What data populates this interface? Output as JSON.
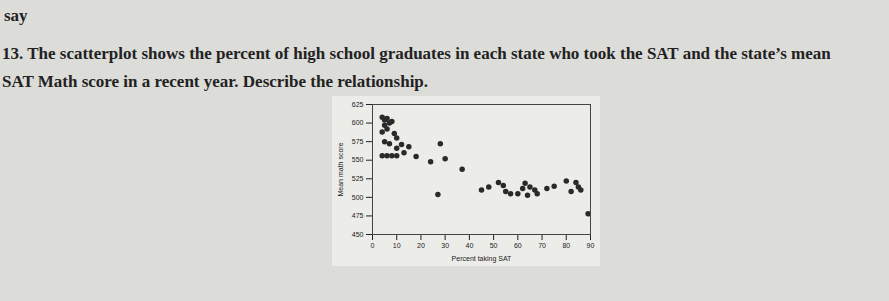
{
  "page": {
    "header": "say",
    "question_lines": [
      "13. The scatterplot shows the percent of high school graduates in each state who took the SAT and the state’s mean",
      "SAT Math score in a recent year. Describe the relationship."
    ]
  },
  "chart_data": {
    "type": "scatter",
    "x_label": "Percent taking SAT",
    "y_label": "Mean math score",
    "xlim": [
      0,
      90
    ],
    "xticks": [
      0,
      10,
      20,
      30,
      40,
      50,
      60,
      70,
      80,
      90
    ],
    "ylim": [
      450,
      625
    ],
    "yticks": [
      450,
      475,
      500,
      525,
      550,
      575,
      600,
      625
    ],
    "color": "#2a2a2a",
    "marker": "circle",
    "grid": false,
    "x": [
      4,
      5,
      6,
      7,
      5,
      8,
      6,
      4,
      9,
      10,
      5,
      7,
      12,
      10,
      15,
      28,
      4,
      6,
      8,
      10,
      13,
      18,
      24,
      30,
      37,
      27,
      45,
      52,
      54,
      48,
      55,
      57,
      60,
      62,
      63,
      65,
      67,
      64,
      68,
      72,
      75,
      80,
      84,
      85,
      86,
      82,
      89
    ],
    "values": [
      608,
      604,
      606,
      600,
      597,
      602,
      592,
      588,
      586,
      580,
      575,
      572,
      571,
      566,
      568,
      572,
      556,
      556,
      556,
      556,
      560,
      555,
      548,
      552,
      538,
      504,
      510,
      520,
      516,
      514,
      508,
      505,
      505,
      512,
      519,
      514,
      510,
      503,
      505,
      512,
      515,
      522,
      520,
      514,
      510,
      508,
      478
    ]
  }
}
